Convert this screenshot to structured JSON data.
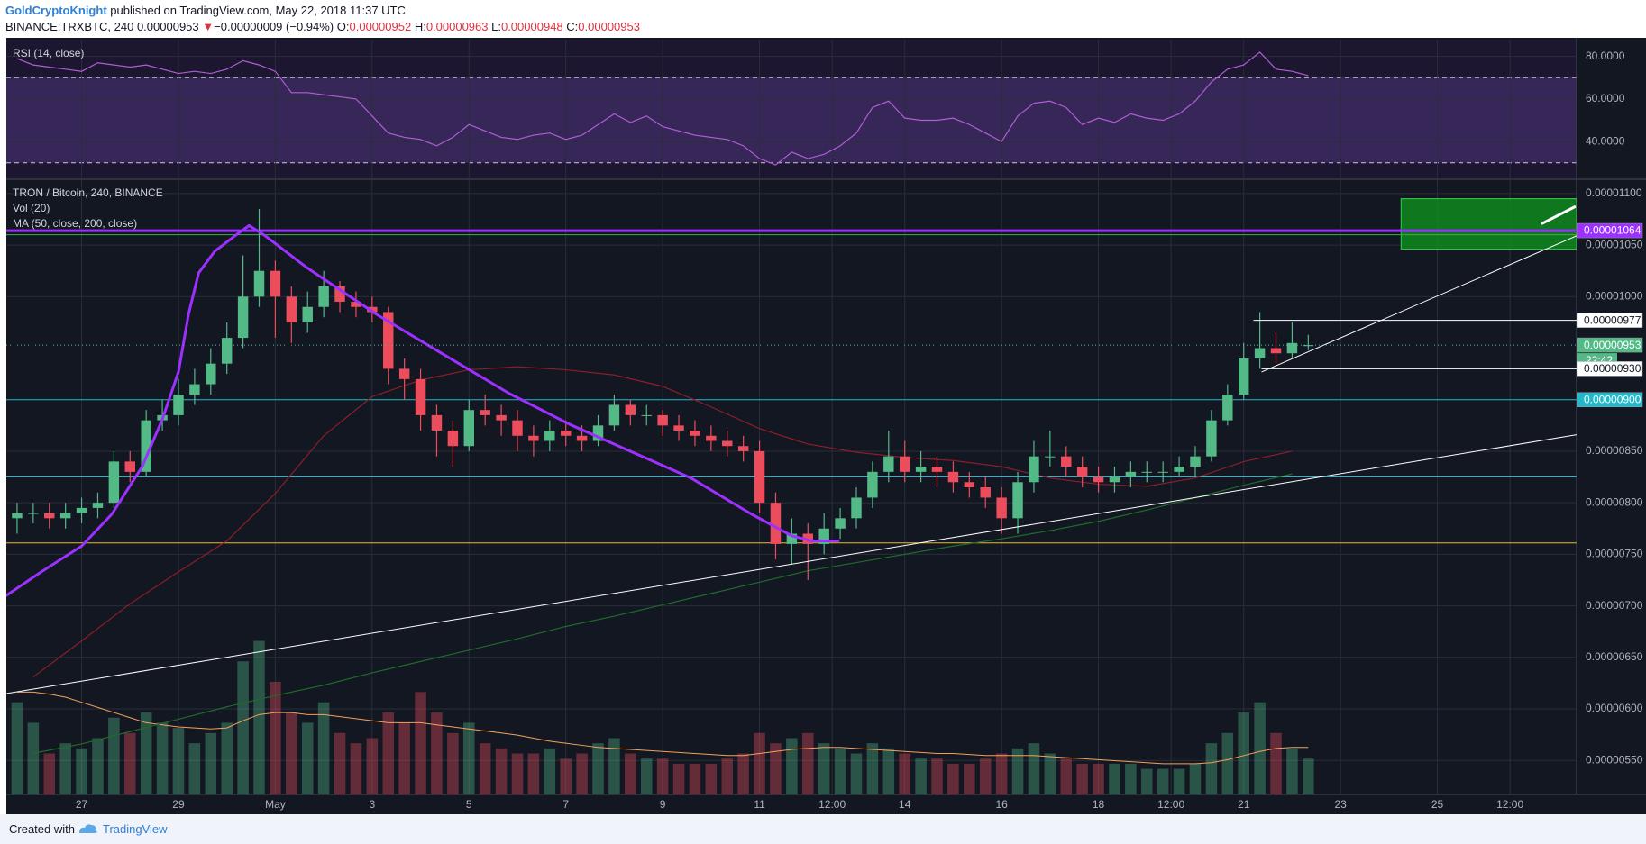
{
  "chart_data": {
    "type": "candlestick",
    "header": {
      "author": "GoldCryptoKnight",
      "published": "published on TradingView.com, May 22, 2018 11:37 UTC",
      "symbol": "BINANCE:TRXBTC, 240",
      "last": "0.00000953",
      "arrow": "▼",
      "change": "−0.00000009 (−0.94%)",
      "ohlc": [
        {
          "key": "O:",
          "value": "0.00000952"
        },
        {
          "key": "H:",
          "value": "0.00000963"
        },
        {
          "key": "L:",
          "value": "0.00000948"
        },
        {
          "key": "C:",
          "value": "0.00000953"
        }
      ]
    },
    "rsi_title": "RSI (14, close)",
    "title": "TRON / Bitcoin, 240, BINANCE",
    "volume_title": "Vol (20)",
    "ma_title": "MA (50, close, 200, close)",
    "footer": {
      "created": "Created with",
      "brand": "TradingView"
    },
    "countdown": "22:42",
    "xlim": [
      "2018-04-25T10:40",
      "2018-05-27T21:00"
    ],
    "xticks": [
      {
        "value": "2018-04-27T00:00",
        "label": "27"
      },
      {
        "value": "2018-04-29T00:00",
        "label": "29"
      },
      {
        "value": "2018-05-01T00:00",
        "label": "May"
      },
      {
        "value": "2018-05-03T00:00",
        "label": "3"
      },
      {
        "value": "2018-05-05T00:00",
        "label": "5"
      },
      {
        "value": "2018-05-07T00:00",
        "label": "7"
      },
      {
        "value": "2018-05-09T00:00",
        "label": "9"
      },
      {
        "value": "2018-05-11T00:00",
        "label": "11"
      },
      {
        "value": "2018-05-12T12:00",
        "label": "12:00"
      },
      {
        "value": "2018-05-14T00:00",
        "label": "14"
      },
      {
        "value": "2018-05-16T00:00",
        "label": "16"
      },
      {
        "value": "2018-05-18T00:00",
        "label": "18"
      },
      {
        "value": "2018-05-19T12:00",
        "label": "12:00"
      },
      {
        "value": "2018-05-21T00:00",
        "label": "21"
      },
      {
        "value": "2018-05-23T00:00",
        "label": "23"
      },
      {
        "value": "2018-05-25T00:00",
        "label": "25"
      },
      {
        "value": "2018-05-26T12:00",
        "label": "12:00"
      }
    ],
    "ylim": [
      5.17e-06,
      1.113e-05
    ],
    "yticks": [
      {
        "value": 5.5e-06,
        "label": "0.00000550"
      },
      {
        "value": 6e-06,
        "label": "0.00000600"
      },
      {
        "value": 6.5e-06,
        "label": "0.00000650"
      },
      {
        "value": 7e-06,
        "label": "0.00000700"
      },
      {
        "value": 7.5e-06,
        "label": "0.00000750"
      },
      {
        "value": 8e-06,
        "label": "0.00000800"
      },
      {
        "value": 8.5e-06,
        "label": "0.00000850"
      },
      {
        "value": 1e-05,
        "label": "0.00001000"
      },
      {
        "value": 1.05e-05,
        "label": "0.00001050"
      },
      {
        "value": 1.1e-05,
        "label": "0.00001100"
      }
    ],
    "rsi_ylim": [
      22.7,
      87.9
    ],
    "rsi_yticks": [
      {
        "value": 40,
        "label": "40.0000"
      },
      {
        "value": 60,
        "label": "60.0000"
      },
      {
        "value": 80,
        "label": "80.0000"
      }
    ],
    "rsi_band": [
      30,
      70
    ],
    "grid": true,
    "up_color": "#53b987",
    "down_color": "#eb4d5c",
    "x": [
      "2018-04-25T16:00",
      "2018-04-26T00:00",
      "2018-04-26T08:00",
      "2018-04-26T16:00",
      "2018-04-27T00:00",
      "2018-04-27T08:00",
      "2018-04-27T16:00",
      "2018-04-28T00:00",
      "2018-04-28T08:00",
      "2018-04-28T16:00",
      "2018-04-29T00:00",
      "2018-04-29T08:00",
      "2018-04-29T16:00",
      "2018-04-30T00:00",
      "2018-04-30T08:00",
      "2018-04-30T16:00",
      "2018-05-01T00:00",
      "2018-05-01T08:00",
      "2018-05-01T16:00",
      "2018-05-02T00:00",
      "2018-05-02T08:00",
      "2018-05-02T16:00",
      "2018-05-03T00:00",
      "2018-05-03T08:00",
      "2018-05-03T16:00",
      "2018-05-04T00:00",
      "2018-05-04T08:00",
      "2018-05-04T16:00",
      "2018-05-05T00:00",
      "2018-05-05T08:00",
      "2018-05-05T16:00",
      "2018-05-06T00:00",
      "2018-05-06T08:00",
      "2018-05-06T16:00",
      "2018-05-07T00:00",
      "2018-05-07T08:00",
      "2018-05-07T16:00",
      "2018-05-08T00:00",
      "2018-05-08T08:00",
      "2018-05-08T16:00",
      "2018-05-09T00:00",
      "2018-05-09T08:00",
      "2018-05-09T16:00",
      "2018-05-10T00:00",
      "2018-05-10T08:00",
      "2018-05-10T16:00",
      "2018-05-11T00:00",
      "2018-05-11T08:00",
      "2018-05-11T16:00",
      "2018-05-12T00:00",
      "2018-05-12T08:00",
      "2018-05-12T16:00",
      "2018-05-13T00:00",
      "2018-05-13T08:00",
      "2018-05-13T16:00",
      "2018-05-14T00:00",
      "2018-05-14T08:00",
      "2018-05-14T16:00",
      "2018-05-15T00:00",
      "2018-05-15T08:00",
      "2018-05-15T16:00",
      "2018-05-16T00:00",
      "2018-05-16T08:00",
      "2018-05-16T16:00",
      "2018-05-17T00:00",
      "2018-05-17T08:00",
      "2018-05-17T16:00",
      "2018-05-18T00:00",
      "2018-05-18T08:00",
      "2018-05-18T16:00",
      "2018-05-19T00:00",
      "2018-05-19T08:00",
      "2018-05-19T16:00",
      "2018-05-20T00:00",
      "2018-05-20T08:00",
      "2018-05-20T16:00",
      "2018-05-21T00:00",
      "2018-05-21T08:00",
      "2018-05-21T16:00",
      "2018-05-22T00:00",
      "2018-05-22T08:00"
    ],
    "open": [
      7.85e-06,
      7.9e-06,
      7.9e-06,
      7.85e-06,
      7.9e-06,
      7.95e-06,
      8e-06,
      8.4e-06,
      8.3e-06,
      8.8e-06,
      8.85e-06,
      9.05e-06,
      9.15e-06,
      9.35e-06,
      9.6e-06,
      1e-05,
      1.025e-05,
      1e-05,
      9.75e-06,
      9.9e-06,
      1.01e-05,
      9.95e-06,
      9.9e-06,
      9.85e-06,
      9.3e-06,
      9.2e-06,
      8.85e-06,
      8.7e-06,
      8.55e-06,
      8.9e-06,
      8.85e-06,
      8.8e-06,
      8.65e-06,
      8.6e-06,
      8.7e-06,
      8.65e-06,
      8.6e-06,
      8.75e-06,
      8.95e-06,
      8.85e-06,
      8.85e-06,
      8.75e-06,
      8.7e-06,
      8.65e-06,
      8.6e-06,
      8.55e-06,
      8.5e-06,
      8e-06,
      7.6e-06,
      7.7e-06,
      7.6e-06,
      7.75e-06,
      7.85e-06,
      8.05e-06,
      8.3e-06,
      8.45e-06,
      8.3e-06,
      8.35e-06,
      8.3e-06,
      8.2e-06,
      8.15e-06,
      8.05e-06,
      7.85e-06,
      8.2e-06,
      8.45e-06,
      8.45e-06,
      8.35e-06,
      8.25e-06,
      8.2e-06,
      8.25e-06,
      8.3e-06,
      8.3e-06,
      8.3e-06,
      8.35e-06,
      8.45e-06,
      8.8e-06,
      9.05e-06,
      9.4e-06,
      9.5e-06,
      9.45e-06,
      9.52e-06
    ],
    "high": [
      8e-06,
      8e-06,
      8e-06,
      8e-06,
      8.05e-06,
      8.1e-06,
      8.5e-06,
      8.5e-06,
      8.9e-06,
      9e-06,
      9.2e-06,
      9.3e-06,
      9.5e-06,
      9.75e-06,
      1.04e-05,
      1.085e-05,
      1.035e-05,
      1.01e-05,
      1.005e-05,
      1.025e-05,
      1.015e-05,
      1.005e-05,
      1e-05,
      9.9e-06,
      9.4e-06,
      9.3e-06,
      8.95e-06,
      8.8e-06,
      9e-06,
      9.05e-06,
      8.95e-06,
      8.9e-06,
      8.75e-06,
      8.8e-06,
      8.8e-06,
      8.75e-06,
      8.85e-06,
      9.05e-06,
      9e-06,
      8.95e-06,
      8.9e-06,
      8.85e-06,
      8.8e-06,
      8.75e-06,
      8.7e-06,
      8.65e-06,
      8.6e-06,
      8.1e-06,
      7.85e-06,
      7.8e-06,
      7.9e-06,
      7.95e-06,
      8.15e-06,
      8.4e-06,
      8.7e-06,
      8.6e-06,
      8.5e-06,
      8.45e-06,
      8.4e-06,
      8.3e-06,
      8.25e-06,
      8.15e-06,
      8.3e-06,
      8.6e-06,
      8.7e-06,
      8.55e-06,
      8.45e-06,
      8.35e-06,
      8.35e-06,
      8.4e-06,
      8.4e-06,
      8.4e-06,
      8.45e-06,
      8.55e-06,
      8.9e-06,
      9.15e-06,
      9.55e-06,
      9.85e-06,
      9.65e-06,
      9.75e-06,
      9.63e-06
    ],
    "low": [
      7.7e-06,
      7.8e-06,
      7.75e-06,
      7.75e-06,
      7.8e-06,
      7.85e-06,
      7.95e-06,
      8.2e-06,
      8.25e-06,
      8.7e-06,
      8.75e-06,
      8.95e-06,
      9.05e-06,
      9.25e-06,
      9.5e-06,
      9.9e-06,
      9.6e-06,
      9.55e-06,
      9.65e-06,
      9.8e-06,
      9.85e-06,
      9.8e-06,
      9.75e-06,
      9.15e-06,
      9e-06,
      8.7e-06,
      8.45e-06,
      8.35e-06,
      8.5e-06,
      8.75e-06,
      8.65e-06,
      8.5e-06,
      8.45e-06,
      8.5e-06,
      8.55e-06,
      8.5e-06,
      8.55e-06,
      8.7e-06,
      8.75e-06,
      8.75e-06,
      8.65e-06,
      8.6e-06,
      8.55e-06,
      8.5e-06,
      8.45e-06,
      8.4e-06,
      7.9e-06,
      7.45e-06,
      7.4e-06,
      7.25e-06,
      7.5e-06,
      7.65e-06,
      7.75e-06,
      7.95e-06,
      8.2e-06,
      8.2e-06,
      8.2e-06,
      8.15e-06,
      8.1e-06,
      8.05e-06,
      7.95e-06,
      7.7e-06,
      7.7e-06,
      8.1e-06,
      8.35e-06,
      8.25e-06,
      8.15e-06,
      8.1e-06,
      8.1e-06,
      8.15e-06,
      8.2e-06,
      8.2e-06,
      8.25e-06,
      8.25e-06,
      8.4e-06,
      8.75e-06,
      9e-06,
      9.3e-06,
      9.35e-06,
      9.4e-06,
      9.48e-06
    ],
    "close": [
      7.9e-06,
      7.9e-06,
      7.85e-06,
      7.9e-06,
      7.95e-06,
      8e-06,
      8.4e-06,
      8.3e-06,
      8.8e-06,
      8.85e-06,
      9.05e-06,
      9.15e-06,
      9.35e-06,
      9.6e-06,
      1e-05,
      1.025e-05,
      1e-05,
      9.75e-06,
      9.9e-06,
      1.01e-05,
      9.95e-06,
      9.9e-06,
      9.85e-06,
      9.3e-06,
      9.2e-06,
      8.85e-06,
      8.7e-06,
      8.55e-06,
      8.9e-06,
      8.85e-06,
      8.8e-06,
      8.65e-06,
      8.6e-06,
      8.7e-06,
      8.65e-06,
      8.6e-06,
      8.75e-06,
      8.95e-06,
      8.85e-06,
      8.85e-06,
      8.75e-06,
      8.7e-06,
      8.65e-06,
      8.6e-06,
      8.55e-06,
      8.5e-06,
      8e-06,
      7.6e-06,
      7.7e-06,
      7.6e-06,
      7.75e-06,
      7.85e-06,
      8.05e-06,
      8.3e-06,
      8.45e-06,
      8.3e-06,
      8.35e-06,
      8.3e-06,
      8.2e-06,
      8.15e-06,
      8.05e-06,
      7.85e-06,
      8.2e-06,
      8.45e-06,
      8.45e-06,
      8.35e-06,
      8.25e-06,
      8.2e-06,
      8.25e-06,
      8.3e-06,
      8.3e-06,
      8.3e-06,
      8.35e-06,
      8.45e-06,
      8.8e-06,
      9.05e-06,
      9.4e-06,
      9.5e-06,
      9.45e-06,
      9.55e-06,
      9.53e-06
    ],
    "volume_ylim": [
      0,
      600
    ],
    "volume": [
      90,
      70,
      40,
      50,
      45,
      55,
      75,
      60,
      80,
      70,
      65,
      50,
      60,
      70,
      130,
      150,
      110,
      80,
      70,
      90,
      60,
      50,
      55,
      80,
      70,
      100,
      80,
      60,
      70,
      50,
      45,
      40,
      40,
      45,
      35,
      40,
      50,
      55,
      40,
      35,
      35,
      30,
      30,
      30,
      35,
      40,
      60,
      50,
      55,
      60,
      50,
      45,
      40,
      50,
      45,
      40,
      35,
      35,
      30,
      30,
      35,
      40,
      45,
      50,
      40,
      35,
      30,
      30,
      30,
      30,
      25,
      25,
      25,
      30,
      50,
      60,
      80,
      90,
      60,
      45,
      35
    ],
    "volume_ma": [
      100,
      100,
      98,
      95,
      90,
      85,
      80,
      75,
      70,
      68,
      66,
      65,
      64,
      65,
      72,
      78,
      80,
      80,
      78,
      78,
      76,
      74,
      72,
      70,
      70,
      70,
      68,
      66,
      64,
      62,
      60,
      58,
      55,
      52,
      50,
      48,
      46,
      45,
      44,
      43,
      42,
      41,
      40,
      39,
      38,
      38,
      40,
      42,
      44,
      45,
      46,
      46,
      45,
      44,
      43,
      42,
      41,
      40,
      40,
      39,
      38,
      38,
      38,
      38,
      37,
      36,
      35,
      34,
      33,
      32,
      31,
      30,
      30,
      30,
      31,
      34,
      38,
      42,
      45,
      46,
      46
    ],
    "volume_ma_color": "#f5a05a",
    "rsi": [
      79,
      76,
      75,
      74,
      73,
      77,
      76,
      75,
      76,
      74,
      72,
      73,
      72,
      74,
      78,
      76,
      73,
      63,
      63,
      62,
      61,
      60,
      52,
      44,
      42,
      41,
      38,
      42,
      48,
      45,
      42,
      41,
      43,
      44,
      41,
      43,
      48,
      53,
      49,
      52,
      47,
      45,
      43,
      42,
      41,
      38,
      32,
      29,
      35,
      32,
      34,
      38,
      44,
      56,
      59,
      51,
      50,
      50,
      51,
      48,
      44,
      40,
      52,
      58,
      59,
      56,
      48,
      51,
      49,
      53,
      51,
      50,
      53,
      59,
      68,
      74,
      76,
      82,
      74,
      73,
      71
    ],
    "rsi_color": "#b05dd6",
    "ma_x": [
      "2018-04-26T00:00",
      "2018-04-27T00:00",
      "2018-04-28T00:00",
      "2018-04-29T00:00",
      "2018-04-30T00:00",
      "2018-05-01T00:00",
      "2018-05-02T00:00",
      "2018-05-03T00:00",
      "2018-05-04T00:00",
      "2018-05-05T00:00",
      "2018-05-06T00:00",
      "2018-05-07T00:00",
      "2018-05-08T00:00",
      "2018-05-09T00:00",
      "2018-05-10T00:00",
      "2018-05-11T00:00",
      "2018-05-12T00:00",
      "2018-05-13T00:00",
      "2018-05-14T00:00",
      "2018-05-15T00:00",
      "2018-05-16T00:00",
      "2018-05-17T00:00",
      "2018-05-18T00:00",
      "2018-05-19T00:00",
      "2018-05-20T00:00",
      "2018-05-21T00:00",
      "2018-05-22T00:00"
    ],
    "ma50": [
      6.31e-06,
      6.66e-06,
      7.02e-06,
      7.33e-06,
      7.63e-06,
      8.09e-06,
      8.65e-06,
      9.03e-06,
      9.19e-06,
      9.29e-06,
      9.32e-06,
      9.29e-06,
      9.24e-06,
      9.13e-06,
      8.93e-06,
      8.72e-06,
      8.57e-06,
      8.49e-06,
      8.44e-06,
      8.41e-06,
      8.35e-06,
      8.24e-06,
      8.18e-06,
      8.16e-06,
      8.24e-06,
      8.4e-06,
      8.5e-06
    ],
    "ma50_color": "#8b1e2a",
    "ma200": [
      5.57e-06,
      5.66e-06,
      5.78e-06,
      5.9e-06,
      6.02e-06,
      6.13e-06,
      6.23e-06,
      6.35e-06,
      6.46e-06,
      6.57e-06,
      6.68e-06,
      6.8e-06,
      6.9e-06,
      7.01e-06,
      7.12e-06,
      7.23e-06,
      7.34e-06,
      7.42e-06,
      7.5e-06,
      7.58e-06,
      7.65e-06,
      7.73e-06,
      7.82e-06,
      7.93e-06,
      8.05e-06,
      8.17e-06,
      8.28e-06
    ],
    "ma200_color": "#1f6b2a",
    "levels": [
      {
        "value": 1.064e-05,
        "color": "#9b30ff",
        "width": 3
      },
      {
        "value": 1.06e-05,
        "color": "#3fae49",
        "width": 1
      },
      {
        "value": 9e-06,
        "color": "#22b8c9",
        "width": 1
      },
      {
        "value": 8.25e-06,
        "color": "#22b8c9",
        "width": 1
      },
      {
        "value": 7.61e-06,
        "color": "#e8b83a",
        "width": 1
      }
    ],
    "drawings": [
      {
        "kind": "box",
        "x": [
          "2018-05-24T06:00",
          "2018-05-27T21:00"
        ],
        "y": [
          1.046e-05,
          1.095e-05
        ],
        "color": "#0f8a1f"
      },
      {
        "kind": "line",
        "x": [
          "2018-04-25T11:00",
          "2018-05-27T21:00"
        ],
        "y": [
          6.15e-06,
          8.66e-06
        ],
        "color": "#ffffff",
        "width": 1
      },
      {
        "kind": "line",
        "x": [
          "2018-05-21T09:00",
          "2018-05-27T21:00"
        ],
        "y": [
          9.27e-06,
          1.059e-05
        ],
        "color": "#ffffff",
        "width": 1
      },
      {
        "kind": "line",
        "x": [
          "2018-05-21T05:00",
          "2018-05-27T21:00"
        ],
        "y": [
          9.77e-06,
          9.77e-06
        ],
        "color": "#ffffff",
        "width": 1
      },
      {
        "kind": "line",
        "x": [
          "2018-05-21T09:00",
          "2018-05-27T21:00"
        ],
        "y": [
          9.3e-06,
          9.3e-06
        ],
        "color": "#ffffff",
        "width": 1
      },
      {
        "kind": "line",
        "x": [
          "2018-05-27T04:00",
          "2018-05-27T20:00"
        ],
        "y": [
          1.071e-05,
          1.087e-05
        ],
        "color": "#ffffff",
        "width": 3
      },
      {
        "kind": "line",
        "x": [
          "2018-04-25T10:40",
          "2018-04-26T04:00",
          "2018-04-27T00:00",
          "2018-04-27T15:00",
          "2018-04-28T06:00",
          "2018-04-28T16:00",
          "2018-04-29T00:00",
          "2018-04-29T05:00",
          "2018-04-29T10:00",
          "2018-04-29T18:00",
          "2018-04-30T04:00",
          "2018-04-30T11:00",
          "2018-04-30T19:00",
          "2018-05-01T15:00",
          "2018-05-03T02:00",
          "2018-05-04T13:00",
          "2018-05-05T20:00",
          "2018-05-07T02:00",
          "2018-05-08T08:00",
          "2018-05-09T14:00",
          "2018-05-10T20:00",
          "2018-05-11T16:00",
          "2018-05-12T02:00",
          "2018-05-12T15:00"
        ],
        "y": [
          7.1e-06,
          7.33e-06,
          7.58e-06,
          7.89e-06,
          8.35e-06,
          8.81e-06,
          9.27e-06,
          9.83e-06,
          1.023e-05,
          1.044e-05,
          1.059e-05,
          1.069e-05,
          1.059e-05,
          1.029e-05,
          9.83e-06,
          9.42e-06,
          9.06e-06,
          8.76e-06,
          8.5e-06,
          8.24e-06,
          7.89e-06,
          7.68e-06,
          7.63e-06,
          7.63e-06
        ],
        "color": "#9b30ff",
        "width": 3
      }
    ],
    "price_labels": [
      {
        "value": 1.064e-05,
        "label": "0.00001064",
        "bg": "#9b30ff",
        "fg": "#ffffff"
      },
      {
        "value": 9.77e-06,
        "label": "0.00000977",
        "bg": "#ffffff",
        "fg": "#131722"
      },
      {
        "value": 9.53e-06,
        "label": "0.00000953",
        "bg": "#53b987",
        "fg": "#ffffff",
        "dotted": true
      },
      {
        "value": 9.3e-06,
        "label": "0.00000930",
        "bg": "#ffffff",
        "fg": "#131722"
      },
      {
        "value": 9e-06,
        "label": "0.00000900",
        "bg": "#22b8c9",
        "fg": "#ffffff"
      }
    ]
  }
}
